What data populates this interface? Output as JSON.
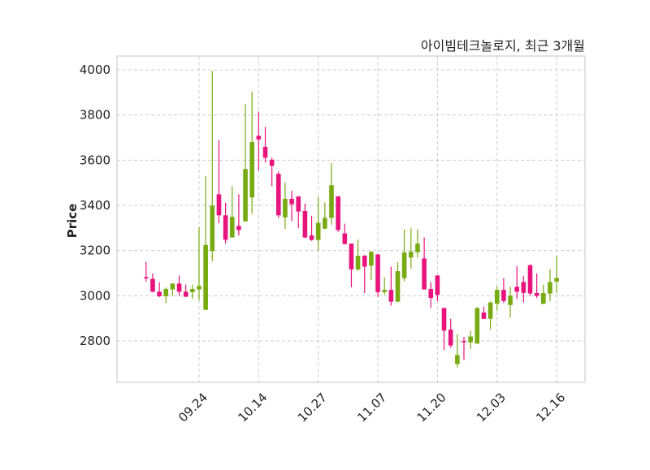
{
  "chart_data": {
    "type": "candlestick",
    "title": "아이빔테크놀로지, 최근 3개월",
    "xlabel": "",
    "ylabel": "Price",
    "ylim": [
      2617,
      4061
    ],
    "yticks": [
      2800,
      3000,
      3200,
      3400,
      3600,
      3800,
      4000
    ],
    "xticks": [
      {
        "index": 8,
        "label": "09.24"
      },
      {
        "index": 17,
        "label": "10.14"
      },
      {
        "index": 26,
        "label": "10.27"
      },
      {
        "index": 35,
        "label": "11.07"
      },
      {
        "index": 44,
        "label": "11.20"
      },
      {
        "index": 53,
        "label": "12.03"
      },
      {
        "index": 62,
        "label": "12.16"
      }
    ],
    "grid": true,
    "colors": {
      "up": "#78ab12",
      "down": "#e8137d",
      "grid": "#cccccc",
      "frame": "#d9d9d9"
    },
    "ohlc": [
      [
        3083,
        3150,
        3063,
        3080
      ],
      [
        3075,
        3099,
        3015,
        3018
      ],
      [
        3018,
        3060,
        2994,
        2998
      ],
      [
        2998,
        3037,
        2968,
        3030
      ],
      [
        3028,
        3056,
        3000,
        3054
      ],
      [
        3054,
        3090,
        3000,
        3018
      ],
      [
        3018,
        3049,
        2994,
        2996
      ],
      [
        3016,
        3049,
        2986,
        3030
      ],
      [
        3028,
        3305,
        2980,
        3044
      ],
      [
        2938,
        3530,
        2938,
        3225
      ],
      [
        3198,
        3995,
        3153,
        3399
      ],
      [
        3449,
        3689,
        3321,
        3356
      ],
      [
        3356,
        3411,
        3231,
        3248
      ],
      [
        3258,
        3485,
        3258,
        3349
      ],
      [
        3309,
        3449,
        3267,
        3291
      ],
      [
        3329,
        3848,
        3329,
        3561
      ],
      [
        3435,
        3904,
        3363,
        3680
      ],
      [
        3708,
        3815,
        3554,
        3692
      ],
      [
        3659,
        3748,
        3590,
        3611
      ],
      [
        3602,
        3611,
        3485,
        3575
      ],
      [
        3540,
        3550,
        3345,
        3356
      ],
      [
        3347,
        3501,
        3295,
        3429
      ],
      [
        3429,
        3465,
        3331,
        3405
      ],
      [
        3440,
        3440,
        3300,
        3373
      ],
      [
        3375,
        3408,
        3255,
        3258
      ],
      [
        3267,
        3354,
        3243,
        3247
      ],
      [
        3247,
        3438,
        3199,
        3323
      ],
      [
        3297,
        3413,
        3295,
        3345
      ],
      [
        3345,
        3588,
        3315,
        3489
      ],
      [
        3440,
        3440,
        3283,
        3291
      ],
      [
        3276,
        3319,
        3227,
        3229
      ],
      [
        3231,
        3231,
        3037,
        3117
      ],
      [
        3117,
        3249,
        3109,
        3177
      ],
      [
        3177,
        3180,
        3012,
        3129
      ],
      [
        3133,
        3198,
        3069,
        3195
      ],
      [
        3183,
        3185,
        2995,
        3016
      ],
      [
        3016,
        3081,
        3004,
        3026
      ],
      [
        3026,
        3129,
        2956,
        2974
      ],
      [
        2974,
        3150,
        2972,
        3109
      ],
      [
        3078,
        3294,
        3064,
        3192
      ],
      [
        3169,
        3299,
        3120,
        3195
      ],
      [
        3193,
        3294,
        3169,
        3231
      ],
      [
        3165,
        3258,
        3028,
        3028
      ],
      [
        3030,
        3060,
        2947,
        2990
      ],
      [
        3090,
        3090,
        2977,
        3004
      ],
      [
        2946,
        2946,
        2760,
        2846
      ],
      [
        2850,
        2898,
        2770,
        2780
      ],
      [
        2698,
        2830,
        2683,
        2738
      ],
      [
        2800,
        2818,
        2716,
        2795
      ],
      [
        2794,
        2845,
        2764,
        2820
      ],
      [
        2788,
        2950,
        2788,
        2946
      ],
      [
        2926,
        2952,
        2896,
        2898
      ],
      [
        2898,
        2976,
        2850,
        2970
      ],
      [
        2965,
        3042,
        2934,
        3026
      ],
      [
        3026,
        3079,
        2968,
        2977
      ],
      [
        2959,
        3040,
        2904,
        3001
      ],
      [
        3040,
        3132,
        2986,
        3018
      ],
      [
        3061,
        3087,
        2970,
        3013
      ],
      [
        3135,
        3140,
        3000,
        3010
      ],
      [
        3012,
        3099,
        2990,
        3000
      ],
      [
        2964,
        3049,
        2964,
        3012
      ],
      [
        3010,
        3117,
        2976,
        3061
      ],
      [
        3063,
        3177,
        3012,
        3079
      ]
    ]
  }
}
